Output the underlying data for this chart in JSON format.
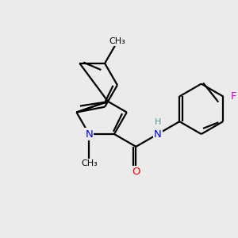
{
  "background_color": "#ebebeb",
  "bond_color": "#000000",
  "N_color": "#0000ff",
  "O_color": "#ff0000",
  "F_color": "#cc00cc",
  "H_color": "#4a9a9a",
  "line_width": 1.6,
  "dbo": 0.055,
  "figsize": [
    3.0,
    3.0
  ],
  "dpi": 100,
  "xlim": [
    -2.3,
    2.3
  ],
  "ylim": [
    -1.6,
    1.6
  ]
}
